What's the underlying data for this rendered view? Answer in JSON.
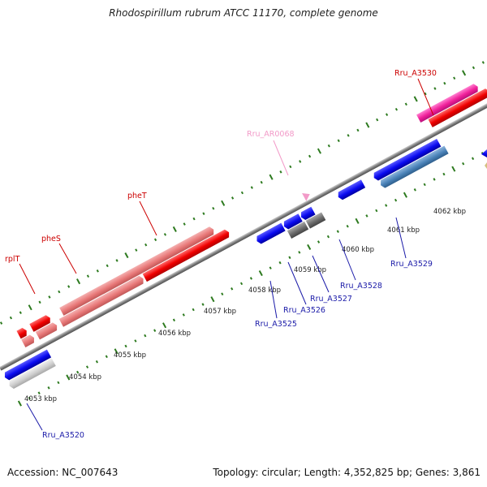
{
  "title": "Rhodospirillum rubrum ATCC 11170, complete genome",
  "footer": {
    "accession": "Accession: NC_007643",
    "summary": "Topology: circular; Length: 4,352,825 bp; Genes: 3,861"
  },
  "colors": {
    "backbone": "#808080",
    "tick": "#2d7a1f",
    "trna_label": "#cc0000",
    "cds_label": "#1a1aa8",
    "ncrna_label": "#f29ac8"
  },
  "scale": {
    "unit": "kbp",
    "labels": [
      "4053 kbp",
      "4054 kbp",
      "4055 kbp",
      "4056 kbp",
      "4057 kbp",
      "4058 kbp",
      "4059 kbp",
      "4060 kbp",
      "4061 kbp",
      "4062 kbp"
    ]
  },
  "labels": {
    "rplT": "rplT",
    "pheS": "pheS",
    "pheT": "pheT",
    "Rru_AR0068": "Rru_AR0068",
    "Rru_A3530": "Rru_A3530",
    "Rru_A3520": "Rru_A3520",
    "Rru_A3525": "Rru_A3525",
    "Rru_A3526": "Rru_A3526",
    "Rru_A3527": "Rru_A3527",
    "Rru_A3528": "Rru_A3528",
    "Rru_A3529": "Rru_A3529"
  }
}
